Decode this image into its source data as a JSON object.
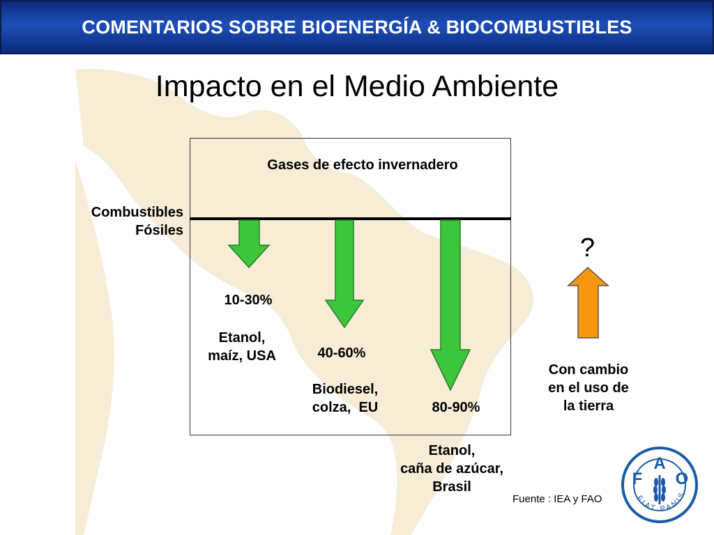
{
  "header": {
    "title": "COMENTARIOS SOBRE BIOENERGÍA & BIOCOMBUSTIBLES"
  },
  "slide": {
    "title": "Impacto en el Medio Ambiente"
  },
  "diagram": {
    "box_title": "Gases de efecto invernadero",
    "baseline_label_line1": "Combustibles",
    "baseline_label_line2": "Fósiles",
    "items": [
      {
        "percent": "10-30%",
        "line1": "Etanol,",
        "line2": "maíz, USA",
        "line3": "",
        "arrow": "down",
        "color": "#3cc63c"
      },
      {
        "percent": "40-60%",
        "line1": "Biodiesel,",
        "line2": "colza,  EU",
        "line3": "",
        "arrow": "down",
        "color": "#3cc63c"
      },
      {
        "percent": "80-90%",
        "line1": "Etanol,",
        "line2": "caña de azúcar,",
        "line3": "Brasil",
        "arrow": "down",
        "color": "#3cc63c"
      }
    ],
    "land_use": {
      "symbol": "?",
      "line1": "Con cambio",
      "line2": "en el uso de",
      "line3": "la tierra",
      "arrow": "up",
      "color": "#f5960f"
    }
  },
  "source": "Fuente : IEA y FAO",
  "logo": {
    "letters": [
      "F",
      "A",
      "O"
    ],
    "motto": "FIAT PANIS"
  }
}
